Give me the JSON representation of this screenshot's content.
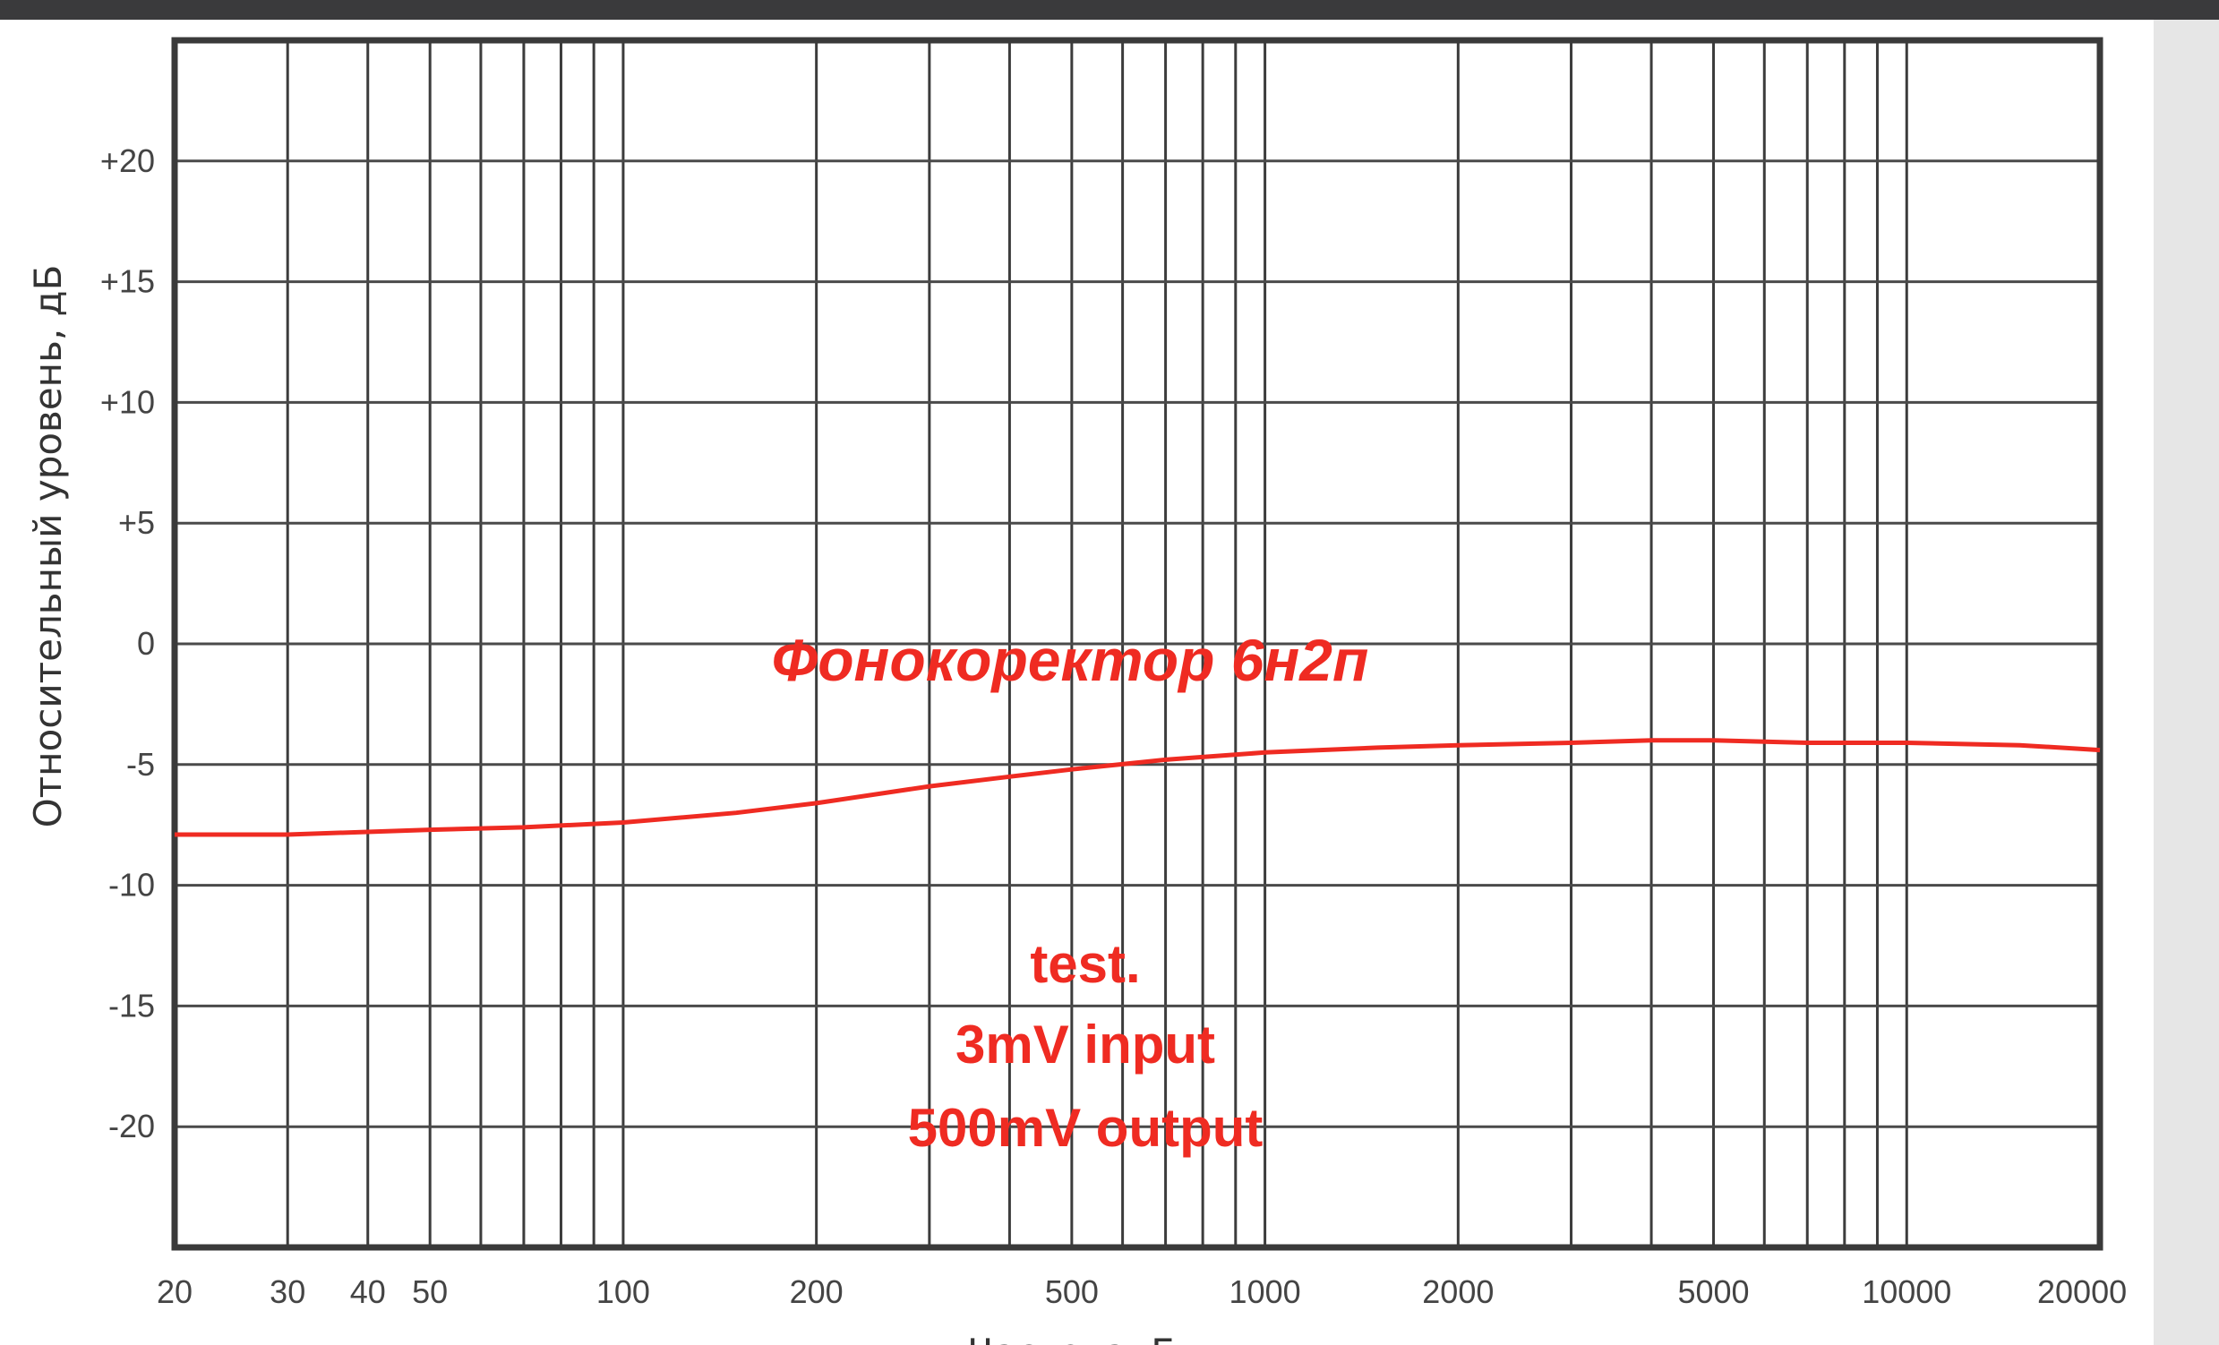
{
  "chart_data": {
    "type": "line",
    "title": "",
    "xlabel": "Частота, Гц",
    "ylabel": "Относительный уровень, дБ",
    "x_scale": "log",
    "xlim": [
      20,
      20000
    ],
    "ylim": [
      -25,
      25
    ],
    "x_ticks": [
      20,
      30,
      40,
      50,
      100,
      200,
      500,
      1000,
      2000,
      5000,
      10000,
      20000
    ],
    "x_tick_labels": [
      "20",
      "30",
      "40",
      "50",
      "100",
      "200",
      "500",
      "1000",
      "2000",
      "5000",
      "10000",
      "20000"
    ],
    "y_ticks": [
      20,
      15,
      10,
      5,
      0,
      -5,
      -10,
      -15,
      -20
    ],
    "y_tick_labels": [
      "+20",
      "+15",
      "+10",
      "+5",
      "0",
      "-5",
      "-10",
      "-15",
      "-20"
    ],
    "grid": true,
    "series_color": "#ef2b22",
    "series": [
      {
        "name": "",
        "x": [
          20,
          30,
          50,
          70,
          100,
          150,
          200,
          300,
          400,
          500,
          700,
          1000,
          1500,
          2000,
          3000,
          4000,
          5000,
          7000,
          10000,
          15000,
          20000
        ],
        "y": [
          -7.9,
          -7.9,
          -7.7,
          -7.6,
          -7.4,
          -7.0,
          -6.6,
          -5.9,
          -5.5,
          -5.2,
          -4.8,
          -4.5,
          -4.3,
          -4.2,
          -4.1,
          -4.0,
          -4.0,
          -4.1,
          -4.1,
          -4.2,
          -4.4
        ]
      }
    ],
    "annotations": [
      "Фонокоректор 6н2п",
      "test.",
      "3mV input",
      "500mV output"
    ]
  }
}
